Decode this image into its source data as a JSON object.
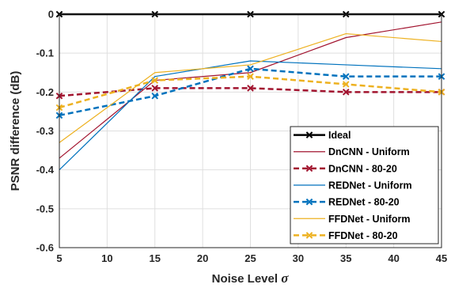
{
  "chart_data": {
    "type": "line",
    "xlabel": "Noise Level",
    "xlabel_symbol": "σ",
    "ylabel": "PSNR difference (dB)",
    "x": [
      5,
      15,
      25,
      35,
      45
    ],
    "xlim": [
      5,
      45
    ],
    "ylim": [
      -0.6,
      0
    ],
    "xticks": [
      5,
      10,
      15,
      20,
      25,
      30,
      35,
      40,
      45
    ],
    "yticks": [
      0,
      -0.1,
      -0.2,
      -0.3,
      -0.4,
      -0.5,
      -0.6
    ],
    "ytick_labels": [
      "0",
      "-0.1",
      "-0.2",
      "-0.3",
      "-0.4",
      "-0.5",
      "-0.6"
    ],
    "grid": true,
    "legend_position": "bottom-right",
    "series": [
      {
        "name": "Ideal",
        "values": [
          0,
          0,
          0,
          0,
          0
        ],
        "color": "#000000",
        "style": "solid",
        "marker": "x",
        "width": 2.5
      },
      {
        "name": "DnCNN - Uniform",
        "values": [
          -0.37,
          -0.17,
          -0.15,
          -0.06,
          -0.02
        ],
        "color": "#a2142f",
        "style": "solid",
        "marker": "none",
        "width": 1.2
      },
      {
        "name": "DnCNN - 80-20",
        "values": [
          -0.21,
          -0.19,
          -0.19,
          -0.2,
          -0.2
        ],
        "color": "#a2142f",
        "style": "dashed",
        "marker": "x",
        "width": 2.5
      },
      {
        "name": "REDNet - Uniform",
        "values": [
          -0.4,
          -0.16,
          -0.12,
          -0.13,
          -0.14
        ],
        "color": "#0072bd",
        "style": "solid",
        "marker": "none",
        "width": 1.2
      },
      {
        "name": "REDNet - 80-20",
        "values": [
          -0.26,
          -0.21,
          -0.14,
          -0.16,
          -0.16
        ],
        "color": "#0072bd",
        "style": "dashed",
        "marker": "x",
        "width": 2.5
      },
      {
        "name": "FFDNet - Uniform",
        "values": [
          -0.33,
          -0.15,
          -0.13,
          -0.05,
          -0.07
        ],
        "color": "#edb120",
        "style": "solid",
        "marker": "none",
        "width": 1.2
      },
      {
        "name": "FFDNet - 80-20",
        "values": [
          -0.24,
          -0.17,
          -0.16,
          -0.18,
          -0.2
        ],
        "color": "#edb120",
        "style": "dashed",
        "marker": "x",
        "width": 2.5
      }
    ]
  }
}
